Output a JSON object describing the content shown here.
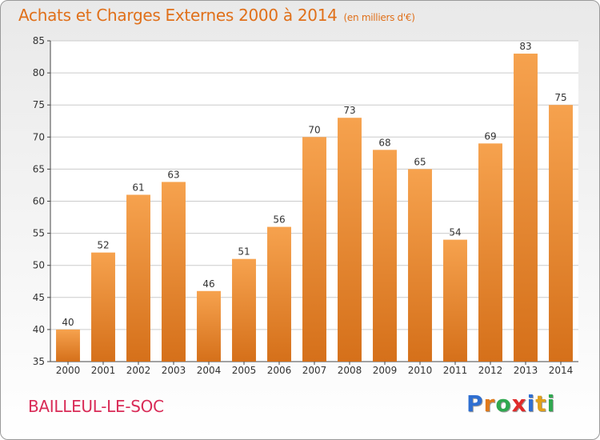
{
  "header": {
    "title": "Achats et Charges Externes 2000 à 2014",
    "unit": "(en milliers d'€)"
  },
  "footer": {
    "commune": "BAILLEUL-LE-SOC",
    "logo_letters": [
      {
        "ch": "P",
        "color": "#2f6fd1"
      },
      {
        "ch": "r",
        "color": "#e07a1b"
      },
      {
        "ch": "o",
        "color": "#2fa84f"
      },
      {
        "ch": "x",
        "color": "#e02b2b"
      },
      {
        "ch": "i",
        "color": "#2f6fd1"
      },
      {
        "ch": "t",
        "color": "#e0a01b"
      },
      {
        "ch": "i",
        "color": "#2fa84f"
      }
    ]
  },
  "colors": {
    "bar_top": "#f6a24e",
    "bar_bottom": "#d5701a",
    "grid": "#cccccc",
    "axis": "#444444"
  },
  "chart_data": {
    "type": "bar",
    "title": "Achats et Charges Externes 2000 à 2014",
    "categories": [
      "2000",
      "2001",
      "2002",
      "2003",
      "2004",
      "2005",
      "2006",
      "2007",
      "2008",
      "2009",
      "2010",
      "2011",
      "2012",
      "2013",
      "2014"
    ],
    "values": [
      40,
      52,
      61,
      63,
      46,
      51,
      56,
      70,
      73,
      68,
      65,
      54,
      69,
      83,
      75
    ],
    "ylim": [
      35,
      85
    ],
    "yticks": [
      35,
      40,
      45,
      50,
      55,
      60,
      65,
      70,
      75,
      80,
      85
    ],
    "grid": true,
    "data_labels": true
  }
}
